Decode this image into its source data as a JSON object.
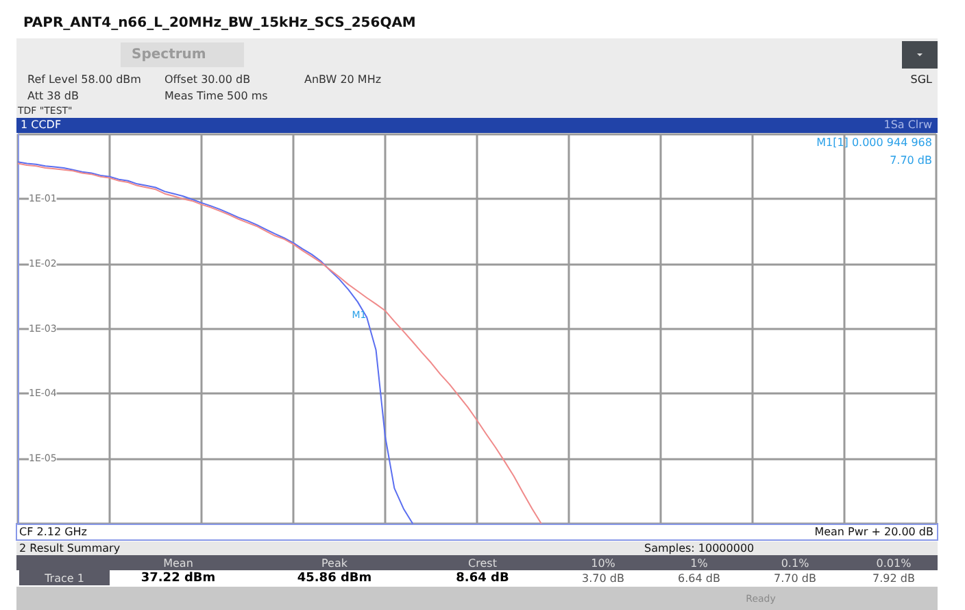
{
  "chart_data": {
    "type": "line",
    "title": "PAPR_ANT4_n66_L_20MHz_BW_15kHz_SCS_256QAM",
    "categories": [
      null,
      null,
      null,
      null,
      null,
      null,
      null,
      null,
      null,
      null,
      null,
      null,
      null,
      null,
      null,
      null,
      null,
      null,
      null,
      null,
      null,
      null,
      null,
      null,
      null,
      null,
      null,
      null,
      null,
      null,
      null,
      null,
      null,
      null,
      null,
      null,
      null,
      null,
      null,
      null,
      null,
      null,
      null,
      null,
      null,
      null,
      null,
      null,
      null,
      null,
      null,
      null,
      null,
      null,
      null,
      null,
      null,
      null,
      null,
      null,
      null,
      null,
      null,
      null,
      null,
      null,
      null,
      null,
      null,
      null,
      null,
      null,
      null,
      null,
      null,
      null,
      null,
      null,
      null,
      null,
      null,
      null,
      null,
      null,
      null,
      null,
      null,
      null,
      null,
      null,
      null,
      null,
      null,
      null,
      null,
      null,
      null,
      null,
      null,
      null,
      null
    ],
    "ylim": [
      1e-06,
      1
    ],
    "yticks": [
      {
        "value": 1,
        "label": null
      },
      {
        "value": 0.1,
        "label": "1E-01"
      },
      {
        "value": 0.01,
        "label": "1E-02"
      },
      {
        "value": 0.001,
        "label": "1E-03"
      },
      {
        "value": 0.0001,
        "label": "1E-04"
      },
      {
        "value": 1e-05,
        "label": "1E-05"
      },
      {
        "value": 1e-06,
        "label": null
      }
    ],
    "log": "y",
    "grid": true,
    "tick_labels": "y",
    "marker": "none",
    "line_style": "solid",
    "series": [
      {
        "color": "#f08a8a",
        "values": [
          0.35,
          0.33,
          0.32,
          0.3,
          0.29,
          0.28,
          0.27,
          0.25,
          0.24,
          0.22,
          0.21,
          0.19,
          0.18,
          0.16,
          0.15,
          0.14,
          0.12,
          0.11,
          0.1,
          0.093,
          0.082,
          0.074,
          0.065,
          0.057,
          0.049,
          0.043,
          0.038,
          0.032,
          0.027,
          0.024,
          0.02,
          0.016,
          0.013,
          0.0105,
          0.0081,
          0.0063,
          0.0048,
          0.0038,
          0.003,
          0.0024,
          0.0019,
          0.0013,
          0.00091,
          0.00063,
          0.00043,
          0.0003,
          0.0002,
          0.00014,
          9.3e-05,
          6.2e-05,
          3.9e-05,
          2.4e-05,
          1.5e-05,
          9.1e-06,
          5.4e-06,
          3e-06,
          1.7e-06,
          1e-06,
          null,
          null,
          null,
          null,
          null,
          null,
          null,
          null,
          null,
          null,
          null,
          null,
          null,
          null,
          null,
          null,
          null,
          null,
          null,
          null,
          null,
          null,
          null,
          null,
          null,
          null,
          null,
          null,
          null,
          null,
          null,
          null,
          null,
          null,
          null,
          null,
          null,
          null,
          null,
          null,
          null,
          null,
          null
        ]
      },
      {
        "color": "#5a6ef0",
        "values": [
          0.37,
          0.35,
          0.34,
          0.32,
          0.31,
          0.3,
          0.28,
          0.26,
          0.25,
          0.23,
          0.22,
          0.2,
          0.19,
          0.17,
          0.16,
          0.15,
          0.13,
          0.12,
          0.11,
          0.098,
          0.087,
          0.078,
          0.069,
          0.06,
          0.052,
          0.046,
          0.04,
          0.034,
          0.029,
          0.025,
          0.021,
          0.017,
          0.014,
          0.011,
          0.0079,
          0.0058,
          0.004,
          0.0026,
          0.0015,
          0.00047,
          2.2e-05,
          3.5e-06,
          1.7e-06,
          1e-06,
          null,
          null,
          null,
          null,
          null,
          null,
          null,
          null,
          null,
          null,
          null,
          null,
          null,
          null,
          null,
          null,
          null,
          null,
          null,
          null,
          null,
          null,
          null,
          null,
          null,
          null,
          null,
          null,
          null,
          null,
          null,
          null,
          null,
          null,
          null,
          null,
          null,
          null,
          null,
          null,
          null,
          null,
          null,
          null,
          null,
          null,
          null,
          null,
          null,
          null,
          null,
          null,
          null,
          null,
          null,
          null,
          null
        ]
      }
    ],
    "annotations": [
      "Spectrum",
      "Ref Level 58.00 dBm",
      "Offset 30.00 dB",
      "AnBW 20 MHz",
      "Att 38 dB",
      "Meas Time 500 ms",
      "TDF \"TEST\"",
      "SGL",
      "1 CCDF",
      "1Sa Clrw",
      "M1[1] 0.000 944 968",
      "7.70 dB",
      "CF 2.12 GHz",
      "Mean Pwr + 20.00 dB",
      "2 Result Summary",
      "Samples: 10000000",
      "Mean",
      "Peak",
      "Crest",
      "10%",
      "1%",
      "0.1%",
      "0.01%",
      "Trace 1",
      "37.22 dBm",
      "45.86 dBm",
      "8.64 dB",
      "3.70 dB",
      "6.64 dB",
      "7.70 dB",
      "7.92 dB",
      "Ready",
      "M1"
    ]
  }
}
